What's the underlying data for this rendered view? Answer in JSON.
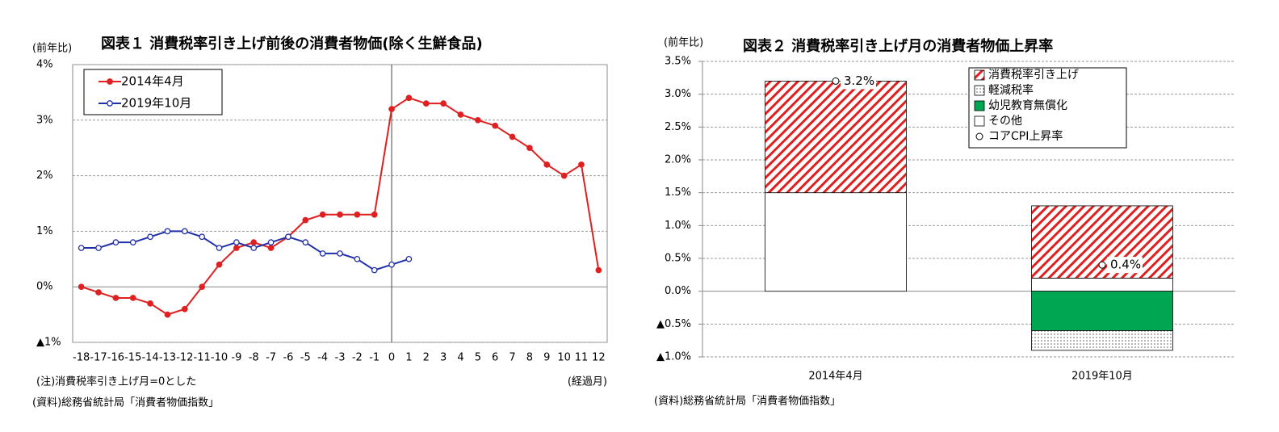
{
  "chart_data": [
    {
      "type": "line",
      "title": "図表１ 消費税率引き上げ前後の消費者物価(除く生鮮食品)",
      "y_label": "(前年比)",
      "x_label": "(経過月)",
      "note": "(注)消費税率引き上げ月=0とした",
      "source": "(資料)総務省統計局「消費者物価指数」",
      "x": [
        -18,
        -17,
        -16,
        -15,
        -14,
        -13,
        -12,
        -11,
        -10,
        -9,
        -8,
        -7,
        -6,
        -5,
        -4,
        -3,
        -2,
        -1,
        0,
        1,
        2,
        3,
        4,
        5,
        6,
        7,
        8,
        9,
        10,
        11,
        12
      ],
      "xlim": [
        -18.5,
        12.5
      ],
      "ylim": [
        -1,
        4
      ],
      "yticks": [
        {
          "value": 4,
          "label": "4%"
        },
        {
          "value": 3,
          "label": "3%"
        },
        {
          "value": 2,
          "label": "2%"
        },
        {
          "value": 1,
          "label": "1%"
        },
        {
          "value": 0,
          "label": "0%"
        },
        {
          "value": -1,
          "label": "▲1%"
        }
      ],
      "grid": true,
      "series": [
        {
          "name": "2014年4月",
          "color": "#e02020",
          "marker": "filled",
          "values": [
            0.0,
            -0.1,
            -0.2,
            -0.2,
            -0.3,
            -0.5,
            -0.4,
            0.0,
            0.4,
            0.7,
            0.8,
            0.7,
            0.9,
            1.2,
            1.3,
            1.3,
            1.3,
            1.3,
            3.2,
            3.4,
            3.3,
            3.3,
            3.1,
            3.0,
            2.9,
            2.7,
            2.5,
            2.2,
            2.0,
            2.2,
            0.3
          ]
        },
        {
          "name": "2019年10月",
          "color": "#2030a8",
          "marker": "hollow",
          "values": [
            0.7,
            0.7,
            0.8,
            0.8,
            0.9,
            1.0,
            1.0,
            0.9,
            0.7,
            0.8,
            0.7,
            0.8,
            0.9,
            0.8,
            0.6,
            0.6,
            0.5,
            0.3,
            0.4,
            0.5,
            null,
            null,
            null,
            null,
            null,
            null,
            null,
            null,
            null,
            null,
            null
          ]
        }
      ]
    },
    {
      "type": "stacked_bar",
      "title": "図表２ 消費税率引き上げ月の消費者物価上昇率",
      "y_label": "(前年比)",
      "source": "(資料)総務省統計局「消費者物価指数」",
      "categories": [
        "2014年4月",
        "2019年10月"
      ],
      "ylim": [
        -1,
        3.5
      ],
      "yticks": [
        {
          "value": 3.5,
          "label": "3.5%"
        },
        {
          "value": 3,
          "label": "3.0%"
        },
        {
          "value": 2.5,
          "label": "2.5%"
        },
        {
          "value": 2,
          "label": "2.0%"
        },
        {
          "value": 1.5,
          "label": "1.5%"
        },
        {
          "value": 1,
          "label": "1.0%"
        },
        {
          "value": 0.5,
          "label": "0.5%"
        },
        {
          "value": 0,
          "label": "0.0%"
        },
        {
          "value": -0.5,
          "label": "▲0.5%"
        },
        {
          "value": -1,
          "label": "▲1.0%"
        }
      ],
      "grid": true,
      "series": [
        {
          "name": "消費税率引き上げ",
          "color": "#e02020",
          "pattern": "hatch",
          "values": [
            1.7,
            1.1
          ]
        },
        {
          "name": "軽減税率",
          "color": "#000000",
          "pattern": "dots",
          "values": [
            null,
            -0.3
          ]
        },
        {
          "name": "幼児教育無償化",
          "color": "#00a651",
          "pattern": "solid",
          "values": [
            null,
            -0.6
          ]
        },
        {
          "name": "その他",
          "color": "#ffffff",
          "pattern": "solid",
          "values": [
            1.5,
            0.2
          ]
        }
      ],
      "markers": {
        "name": "コアCPI上昇率",
        "values": [
          3.2,
          0.4
        ],
        "value_labels": [
          "3.2%",
          "0.4%"
        ]
      }
    }
  ]
}
